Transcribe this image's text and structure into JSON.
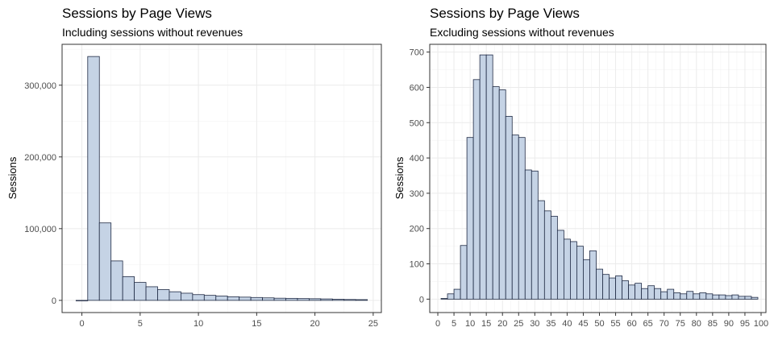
{
  "chart_data": [
    {
      "type": "bar",
      "title": "Sessions by Page Views",
      "subtitle": "Including sessions without revenues",
      "xlabel": "",
      "ylabel": "Sessions",
      "xlim": [
        -1.7,
        25.7
      ],
      "ylim": [
        -17000,
        357000
      ],
      "binwidth": 1,
      "x_ticks": [
        0,
        5,
        10,
        15,
        20,
        25
      ],
      "x_tick_labels": [
        "0",
        "5",
        "10",
        "15",
        "20",
        "25"
      ],
      "y_ticks": [
        0,
        100000,
        200000,
        300000
      ],
      "y_tick_labels": [
        "0",
        "100,000",
        "200,000",
        "300,000"
      ],
      "bar_color": "#c5d3e5",
      "bar_outline": "#1f2a44",
      "grid": true,
      "x": [
        0,
        1,
        2,
        3,
        4,
        5,
        6,
        7,
        8,
        9,
        10,
        11,
        12,
        13,
        14,
        15,
        16,
        17,
        18,
        19,
        20,
        21,
        22,
        23,
        24
      ],
      "values": [
        0,
        340000,
        108000,
        55000,
        33000,
        25000,
        19000,
        15000,
        12000,
        10000,
        8000,
        7000,
        6000,
        5000,
        4500,
        4000,
        3500,
        3000,
        2800,
        2500,
        2300,
        2000,
        1500,
        1200,
        1000
      ]
    },
    {
      "type": "bar",
      "title": "Sessions by Page Views",
      "subtitle": "Excluding sessions without revenues",
      "xlabel": "",
      "ylabel": "Sessions",
      "xlim": [
        -2.5,
        101.5
      ],
      "ylim": [
        -38,
        722
      ],
      "binwidth": 2,
      "x_ticks": [
        0,
        5,
        10,
        15,
        20,
        25,
        30,
        35,
        40,
        45,
        50,
        55,
        60,
        65,
        70,
        75,
        80,
        85,
        90,
        95,
        100
      ],
      "x_tick_labels": [
        "0",
        "5",
        "10",
        "15",
        "20",
        "25",
        "30",
        "35",
        "40",
        "45",
        "50",
        "55",
        "60",
        "65",
        "70",
        "75",
        "80",
        "85",
        "90",
        "95",
        "100"
      ],
      "y_ticks": [
        0,
        100,
        200,
        300,
        400,
        500,
        600,
        700
      ],
      "y_tick_labels": [
        "0",
        "100",
        "200",
        "300",
        "400",
        "500",
        "600",
        "700"
      ],
      "bar_color": "#c5d3e5",
      "bar_outline": "#1f2a44",
      "grid": true,
      "x": [
        2,
        4,
        6,
        8,
        10,
        12,
        14,
        16,
        18,
        20,
        22,
        24,
        26,
        28,
        30,
        32,
        34,
        36,
        38,
        40,
        42,
        44,
        46,
        48,
        50,
        52,
        54,
        56,
        58,
        60,
        62,
        64,
        66,
        68,
        70,
        72,
        74,
        76,
        78,
        80,
        82,
        84,
        86,
        88,
        90,
        92,
        94,
        96,
        98
      ],
      "values": [
        2,
        15,
        28,
        152,
        458,
        622,
        692,
        692,
        602,
        593,
        518,
        465,
        458,
        366,
        363,
        279,
        250,
        235,
        195,
        170,
        163,
        150,
        112,
        137,
        85,
        70,
        60,
        66,
        52,
        40,
        45,
        30,
        38,
        30,
        21,
        28,
        18,
        15,
        22,
        15,
        18,
        15,
        12,
        12,
        10,
        12,
        8,
        8,
        5
      ]
    }
  ]
}
